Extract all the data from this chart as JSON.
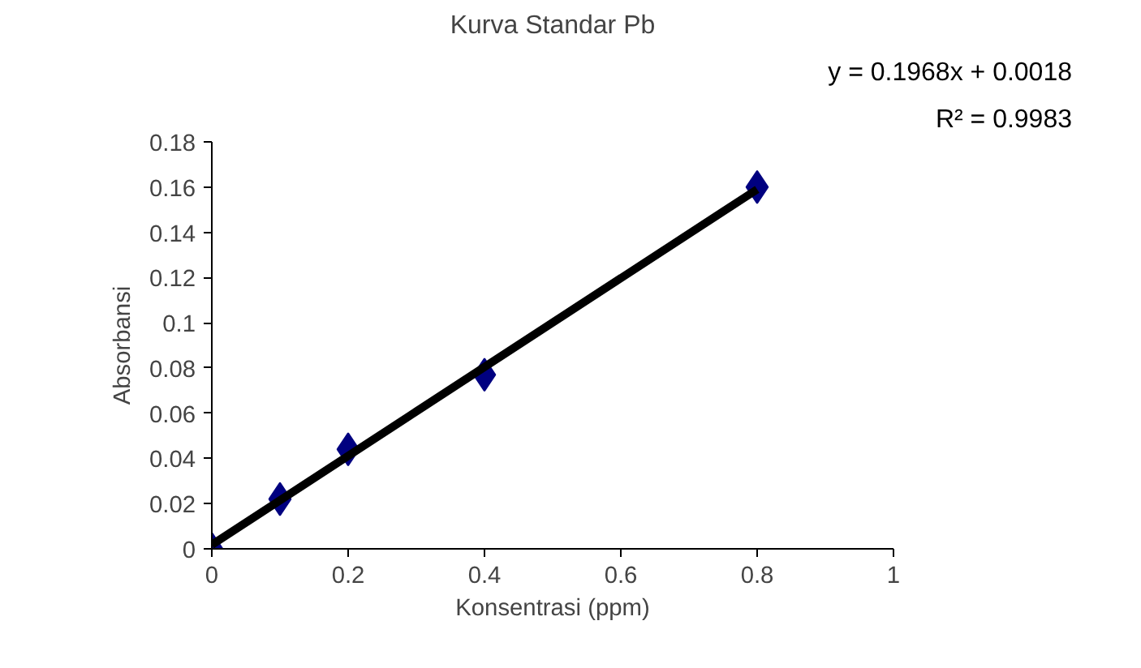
{
  "chart_data": {
    "type": "scatter",
    "title": "Kurva Standar Pb",
    "xlabel": "Konsentrasi (ppm)",
    "ylabel": "Absorbansi",
    "x": [
      0,
      0.1,
      0.2,
      0.4,
      0.8
    ],
    "series": [
      {
        "type": "scatter",
        "color": "#000080",
        "values": [
          0,
          0.022,
          0.044,
          0.077,
          0.16
        ],
        "marker": "diamond"
      },
      {
        "type": "line",
        "color": "#000000",
        "x": [
          0,
          0.8
        ],
        "values": [
          0.0018,
          0.159
        ],
        "line_style": "solid"
      }
    ],
    "annotations": [
      "y = 0.1968x + 0.0018",
      "R² = 0.9983"
    ],
    "xlim": [
      0,
      1
    ],
    "ylim": [
      0,
      0.18
    ],
    "xticks": [
      0,
      0.2,
      0.4,
      0.6,
      0.8,
      1
    ],
    "yticks": [
      0,
      0.02,
      0.04,
      0.06,
      0.08,
      0.1,
      0.12,
      0.14,
      0.16,
      0.18
    ],
    "grid": false
  }
}
